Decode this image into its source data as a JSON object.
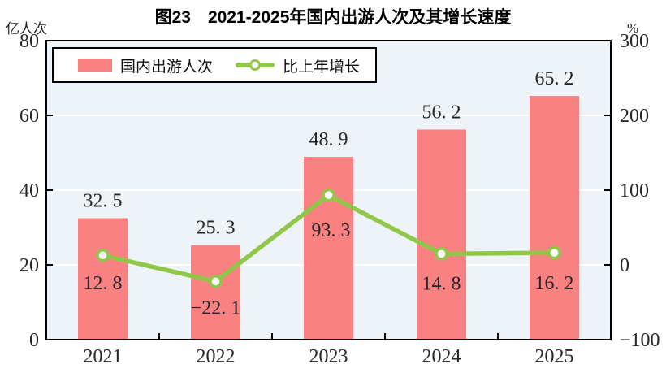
{
  "title": "图23　2021-2025年国内出游人次及其增长速度",
  "chart_data": {
    "type": "combo",
    "title": "图23　2021-2025年国内出游人次及其增长速度",
    "categories": [
      "2021",
      "2022",
      "2023",
      "2024",
      "2025"
    ],
    "series": [
      {
        "name": "国内出游人次",
        "type": "bar",
        "axis": "left",
        "color": "#fa8181",
        "values": [
          32.5,
          25.3,
          48.9,
          56.2,
          65.2
        ],
        "labels": [
          "32. 5",
          "25. 3",
          "48. 9",
          "56. 2",
          "65. 2"
        ]
      },
      {
        "name": "比上年增长",
        "type": "line",
        "axis": "right",
        "color": "#8fc849",
        "marker": "white-circle",
        "values": [
          12.8,
          -22.1,
          93.3,
          14.8,
          16.2
        ],
        "labels": [
          "12. 8",
          "−22. 1",
          "93. 3",
          "14. 8",
          "16. 2"
        ]
      }
    ],
    "left_axis": {
      "unit": "亿人次",
      "min": 0,
      "max": 80,
      "ticks": [
        0,
        20,
        40,
        60,
        80
      ]
    },
    "right_axis": {
      "unit": "%",
      "min": -100,
      "max": 300,
      "ticks": [
        -100,
        0,
        100,
        200,
        300
      ]
    },
    "plot_bg": "#edf3f7",
    "grid_color": "#ffffff",
    "border_color": "#000000",
    "grid": "horizontal",
    "legend_position": "top-left-inside"
  }
}
